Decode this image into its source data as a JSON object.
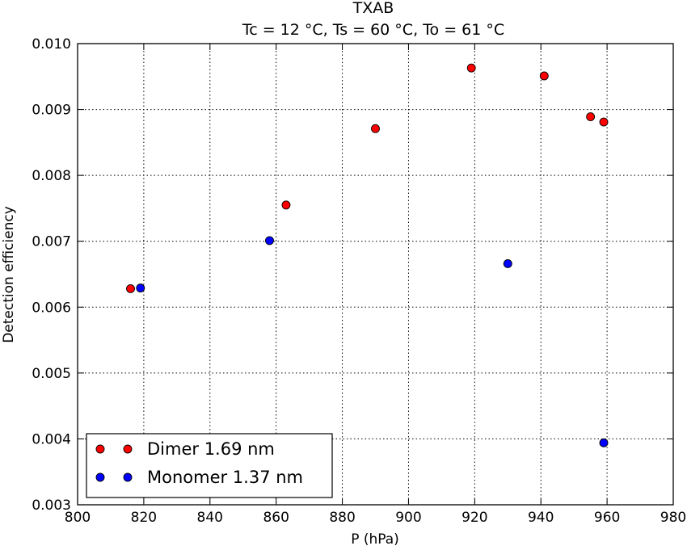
{
  "chart_data": {
    "type": "scatter",
    "title": "TXAB",
    "subtitle": "Tc = 12 °C, Ts = 60 °C, To = 61 °C",
    "xlabel": "P (hPa)",
    "ylabel": "Detection efficiency",
    "xlim": [
      800,
      980
    ],
    "ylim": [
      0.003,
      0.01
    ],
    "xticks": [
      "800",
      "820",
      "840",
      "860",
      "880",
      "900",
      "920",
      "940",
      "960",
      "980"
    ],
    "yticks": [
      "0.003",
      "0.004",
      "0.005",
      "0.006",
      "0.007",
      "0.008",
      "0.009",
      "0.010"
    ],
    "grid": true,
    "legend_position": "bottom-left",
    "series": [
      {
        "name": "Dimer 1.69 nm",
        "color": "#ff0000",
        "points": [
          {
            "x": 816,
            "y": 0.00628
          },
          {
            "x": 863,
            "y": 0.00755
          },
          {
            "x": 890,
            "y": 0.00871
          },
          {
            "x": 919,
            "y": 0.00963
          },
          {
            "x": 941,
            "y": 0.00951
          },
          {
            "x": 955,
            "y": 0.00889
          },
          {
            "x": 959,
            "y": 0.00881
          }
        ]
      },
      {
        "name": "Monomer 1.37 nm",
        "color": "#0000ff",
        "points": [
          {
            "x": 819,
            "y": 0.00629
          },
          {
            "x": 858,
            "y": 0.00701
          },
          {
            "x": 930,
            "y": 0.00666
          },
          {
            "x": 959,
            "y": 0.00394
          }
        ]
      }
    ]
  }
}
